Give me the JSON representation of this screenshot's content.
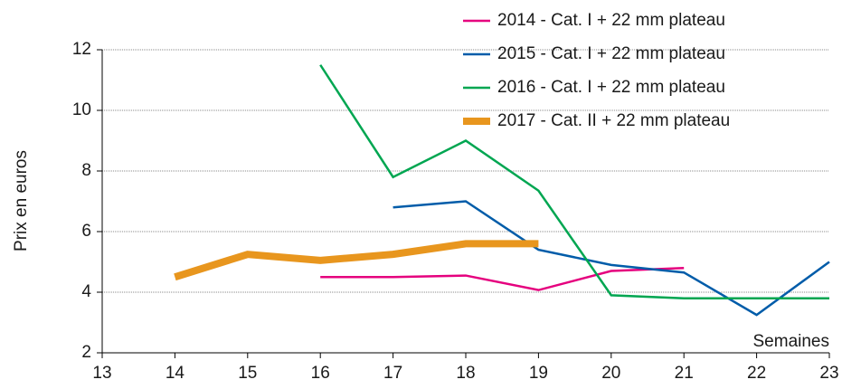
{
  "chart_data": {
    "type": "line",
    "x_label": "Semaines",
    "y_label": "Prix en euros",
    "x": [
      14,
      15,
      16,
      17,
      18,
      19,
      20,
      21,
      22,
      23
    ],
    "series": [
      {
        "name": "2014 - Cat. I + 22 mm plateau",
        "color": "#e5007e",
        "width": 2.5,
        "values": [
          null,
          null,
          4.5,
          4.5,
          4.55,
          4.07,
          4.7,
          4.8,
          null,
          null
        ]
      },
      {
        "name": "2015 - Cat. I + 22 mm plateau",
        "color": "#005ca9",
        "width": 2.5,
        "values": [
          null,
          null,
          null,
          6.8,
          7.0,
          5.4,
          4.9,
          4.65,
          3.25,
          5.0
        ]
      },
      {
        "name": "2016 - Cat. I + 22 mm plateau",
        "color": "#00a651",
        "width": 2.5,
        "values": [
          null,
          null,
          11.5,
          7.8,
          9.0,
          7.35,
          3.9,
          3.8,
          3.8,
          3.8
        ]
      },
      {
        "name": "2017 - Cat. II + 22 mm plateau",
        "color": "#e8961e",
        "width": 8,
        "values": [
          4.5,
          5.25,
          5.05,
          5.25,
          5.6,
          5.6,
          null,
          null,
          null,
          null
        ]
      }
    ],
    "xlim": [
      13,
      23
    ],
    "xticks": [
      13,
      14,
      15,
      16,
      17,
      18,
      19,
      20,
      21,
      22,
      23
    ],
    "ylim": [
      2,
      12
    ],
    "yticks": [
      2,
      4,
      6,
      8,
      10,
      12
    ],
    "grid": true,
    "legend_position": "upper right"
  }
}
